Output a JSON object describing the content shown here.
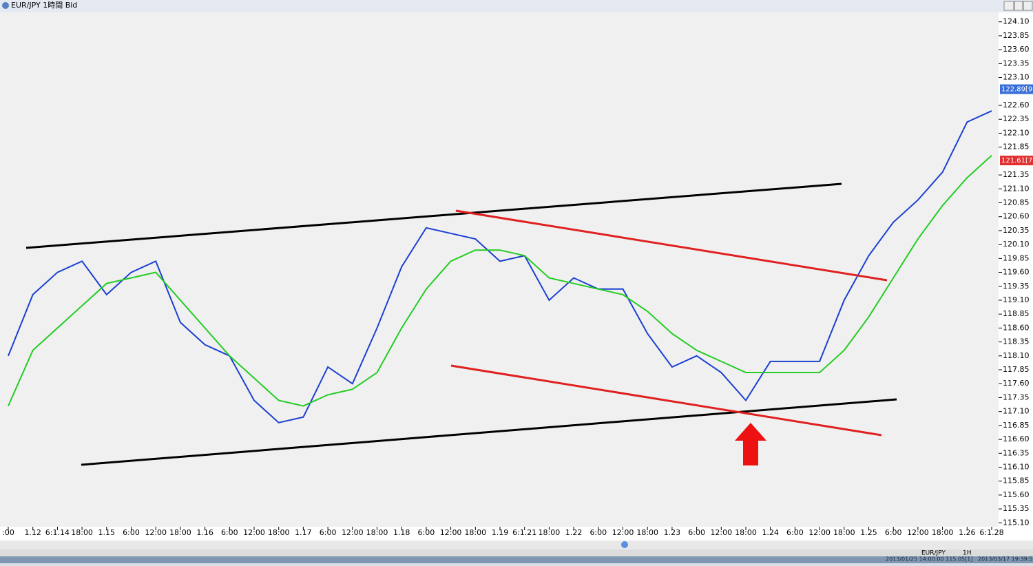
{
  "window_title": "EUR/JPY 1時間 Bid",
  "chart_data": {
    "type": "line",
    "categories": [
      ":00",
      "1.12",
      "6:1.14",
      "18:00",
      "1.15",
      "6:00",
      "12:00",
      "18:00",
      "1.16",
      "6:00",
      "12:00",
      "18:00",
      "1.17",
      "6:00",
      "12:00",
      "18:00",
      "1.18",
      "6:00",
      "12:00",
      "18:00",
      "1.19",
      "6:1.21",
      "18:00",
      "1.22",
      "6:00",
      "12:00",
      "18:00",
      "1.23",
      "6:00",
      "12:00",
      "18:00",
      "1.24",
      "6:00",
      "12:00",
      "18:00",
      "1.25",
      "6:00",
      "12:00",
      "18:00",
      "1.26",
      "6:1.28"
    ],
    "series": [
      {
        "color": "#1a3fd1",
        "values": [
          118.1,
          119.2,
          119.6,
          119.8,
          119.2,
          119.6,
          119.8,
          118.7,
          118.3,
          118.1,
          117.3,
          116.9,
          117.0,
          117.9,
          117.6,
          118.6,
          119.7,
          120.4,
          120.3,
          120.2,
          119.8,
          119.9,
          119.1,
          119.5,
          119.3,
          119.3,
          118.5,
          117.9,
          118.1,
          117.8,
          117.3,
          118.0,
          118.0,
          118.0,
          119.1,
          119.9,
          120.5,
          120.9,
          121.4,
          122.3,
          122.5
        ]
      },
      {
        "color": "#22cc22",
        "values": [
          117.2,
          118.2,
          118.6,
          119.0,
          119.4,
          119.5,
          119.6,
          119.1,
          118.6,
          118.1,
          117.7,
          117.3,
          117.2,
          117.4,
          117.5,
          117.8,
          118.6,
          119.3,
          119.8,
          120.0,
          120.0,
          119.9,
          119.5,
          119.4,
          119.3,
          119.2,
          118.9,
          118.5,
          118.2,
          118.0,
          117.8,
          117.8,
          117.8,
          117.8,
          118.2,
          118.8,
          119.5,
          120.2,
          120.8,
          121.3,
          121.7
        ]
      }
    ],
    "ylim": [
      115.03,
      124.27
    ],
    "yticks": [
      {
        "value": 124.1,
        "label": "124.10"
      },
      {
        "value": 123.85,
        "label": "123.85"
      },
      {
        "value": 123.6,
        "label": "123.60"
      },
      {
        "value": 123.35,
        "label": "123.35"
      },
      {
        "value": 123.1,
        "label": "123.10"
      },
      {
        "value": 122.6,
        "label": "122.60"
      },
      {
        "value": 122.35,
        "label": "122.35"
      },
      {
        "value": 122.1,
        "label": "122.10"
      },
      {
        "value": 121.85,
        "label": "121.85"
      },
      {
        "value": 121.35,
        "label": "121.35"
      },
      {
        "value": 121.1,
        "label": "121.10"
      },
      {
        "value": 120.85,
        "label": "120.85"
      },
      {
        "value": 120.6,
        "label": "120.60"
      },
      {
        "value": 120.35,
        "label": "120.35"
      },
      {
        "value": 120.1,
        "label": "120.10"
      },
      {
        "value": 119.85,
        "label": "119.85"
      },
      {
        "value": 119.6,
        "label": "119.60"
      },
      {
        "value": 119.35,
        "label": "119.35"
      },
      {
        "value": 119.1,
        "label": "119.10"
      },
      {
        "value": 118.85,
        "label": "118.85"
      },
      {
        "value": 118.6,
        "label": "118.60"
      },
      {
        "value": 118.35,
        "label": "118.35"
      },
      {
        "value": 118.1,
        "label": "118.10"
      },
      {
        "value": 117.85,
        "label": "117.85"
      },
      {
        "value": 117.6,
        "label": "117.60"
      },
      {
        "value": 117.35,
        "label": "117.35"
      },
      {
        "value": 117.1,
        "label": "117.10"
      },
      {
        "value": 116.85,
        "label": "116.85"
      },
      {
        "value": 116.6,
        "label": "116.60"
      },
      {
        "value": 116.35,
        "label": "116.35"
      },
      {
        "value": 116.1,
        "label": "116.10"
      },
      {
        "value": 115.85,
        "label": "115.85"
      },
      {
        "value": 115.6,
        "label": "115.60"
      },
      {
        "value": 115.35,
        "label": "115.35"
      },
      {
        "value": 115.1,
        "label": "115.10"
      }
    ],
    "price_tags": [
      {
        "value": 122.89,
        "label": "122.89[9",
        "color": "#3a6fd8"
      },
      {
        "value": 121.61,
        "label": "121.61[7",
        "color": "#e03030"
      }
    ]
  },
  "toolbar": {
    "symbol": "EUR/JPY",
    "period": "1H"
  },
  "status": {
    "cursor": "2013/01/25 14:00:00  115.05[1]",
    "time": "2013/03/17 19:39:55"
  }
}
